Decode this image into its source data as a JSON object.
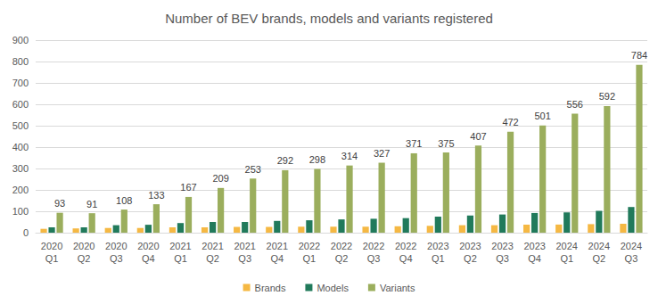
{
  "chart_data": {
    "type": "bar",
    "title": "Number of BEV brands, models and variants registered",
    "categories": [
      "2020 Q1",
      "2020 Q2",
      "2020 Q3",
      "2020 Q4",
      "2021 Q1",
      "2021 Q2",
      "2021 Q3",
      "2021 Q4",
      "2022 Q1",
      "2022 Q2",
      "2022 Q3",
      "2022 Q4",
      "2023 Q1",
      "2023 Q2",
      "2023 Q3",
      "2023 Q4",
      "2024 Q1",
      "2024 Q2",
      "2024 Q3"
    ],
    "series": [
      {
        "name": "Brands",
        "color": "#f5b843",
        "values": [
          18,
          20,
          22,
          22,
          25,
          25,
          27,
          27,
          28,
          28,
          28,
          30,
          32,
          35,
          35,
          37,
          38,
          40,
          42
        ]
      },
      {
        "name": "Models",
        "color": "#217a5b",
        "values": [
          25,
          25,
          35,
          37,
          45,
          50,
          50,
          55,
          58,
          62,
          65,
          68,
          75,
          80,
          85,
          92,
          95,
          102,
          120
        ]
      },
      {
        "name": "Variants",
        "color": "#9bae5d",
        "data_labels": true,
        "values": [
          93,
          91,
          108,
          133,
          167,
          209,
          253,
          292,
          298,
          314,
          327,
          371,
          375,
          407,
          472,
          501,
          556,
          592,
          784
        ]
      }
    ],
    "ylim": [
      0,
      900
    ],
    "yticks": [
      0,
      100,
      200,
      300,
      400,
      500,
      600,
      700,
      800,
      900
    ],
    "grid": true,
    "legend": "bottom"
  }
}
